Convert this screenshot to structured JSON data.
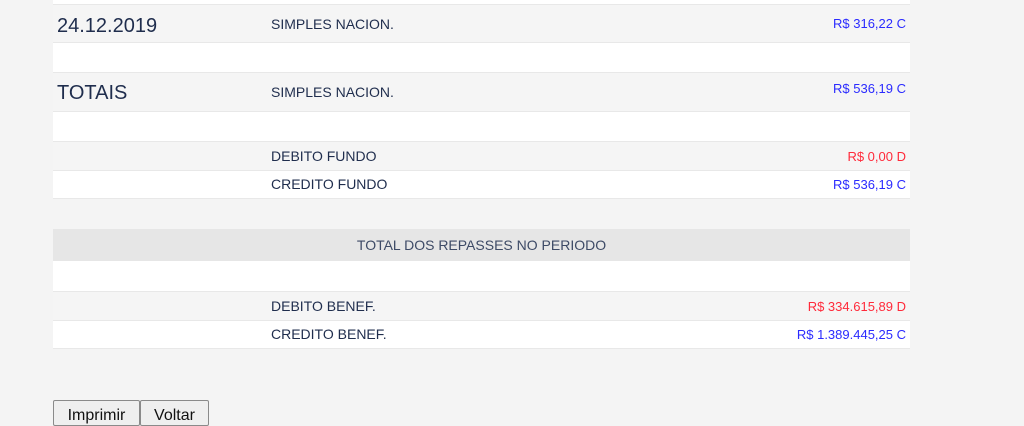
{
  "rows": [
    {
      "col1": "24.12.2019",
      "label": "SIMPLES NACION.",
      "amount": "R$ 316,22 C",
      "type": "credit"
    },
    {
      "col1": "TOTAIS",
      "label": "SIMPLES NACION.",
      "amount": "R$ 536,19 C",
      "type": "credit"
    },
    {
      "label": "DEBITO FUNDO",
      "amount": "R$ 0,00 D",
      "type": "debit"
    },
    {
      "label": "CREDITO FUNDO",
      "amount": "R$ 536,19 C",
      "type": "credit"
    }
  ],
  "section_header": "TOTAL DOS REPASSES NO PERIODO",
  "totals": [
    {
      "label": "DEBITO BENEF.",
      "amount": "R$ 334.615,89 D",
      "type": "debit"
    },
    {
      "label": "CREDITO BENEF.",
      "amount": "R$ 1.389.445,25 C",
      "type": "credit"
    }
  ],
  "buttons": {
    "print": "Imprimir",
    "back": "Voltar"
  },
  "colors": {
    "credit": "#2b2bff",
    "debit": "#ff2a3a",
    "header_bg": "#e6e6e6"
  }
}
